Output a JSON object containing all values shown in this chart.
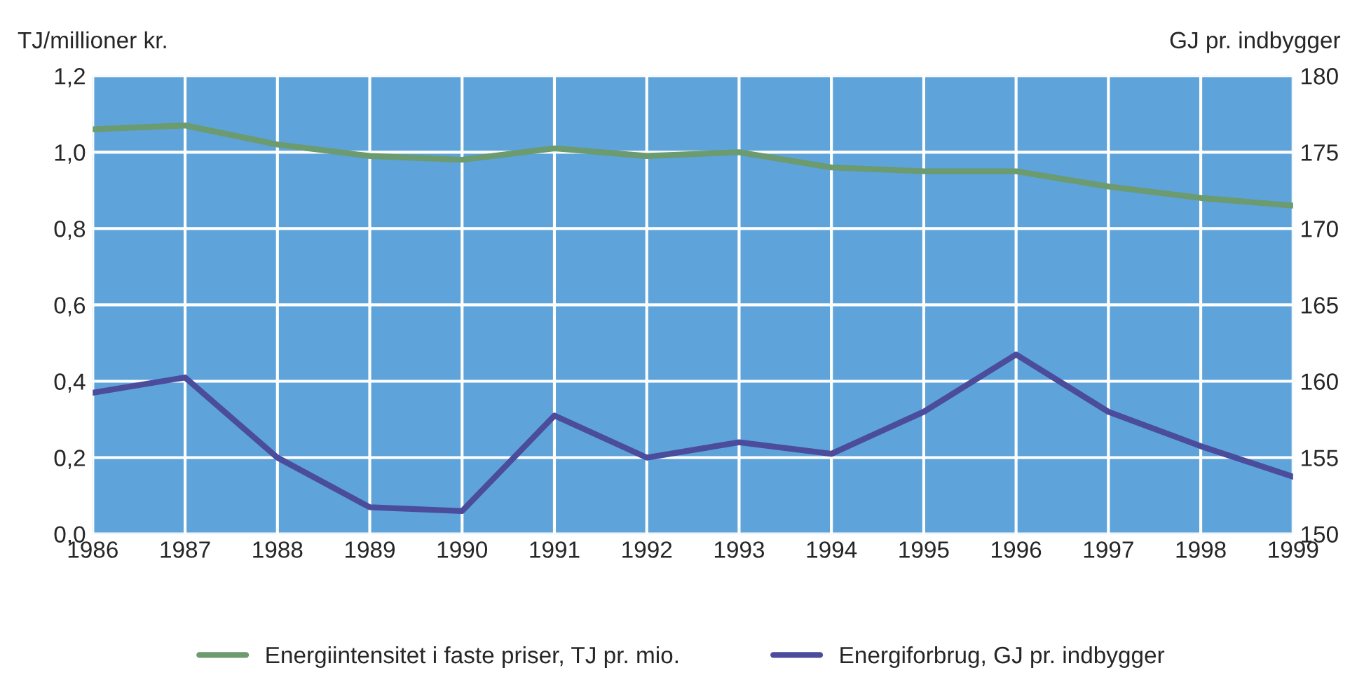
{
  "chart_data": {
    "type": "line",
    "x": [
      1986,
      1987,
      1988,
      1989,
      1990,
      1991,
      1992,
      1993,
      1994,
      1995,
      1996,
      1997,
      1998,
      1999
    ],
    "ylabel": "TJ/millioner kr.",
    "y2label": "GJ pr. indbygger",
    "series": [
      {
        "name": "Energiintensitet i faste priser, TJ pr. mio.",
        "color": "#6b9b6e",
        "values": [
          1.06,
          1.07,
          1.02,
          0.99,
          0.98,
          1.01,
          0.99,
          1.0,
          0.96,
          0.95,
          0.95,
          0.91,
          0.88,
          0.86
        ]
      },
      {
        "name": "Energiforbrug, GJ pr. indbygger",
        "color": "#4b4c9c",
        "axis": "y2",
        "values": [
          159.25,
          160.25,
          155,
          151.75,
          151.5,
          157.75,
          155,
          156,
          155.25,
          158,
          161.75,
          158,
          155.75,
          153.75
        ]
      }
    ],
    "xlim": [
      1986,
      1999
    ],
    "xticks": [
      1986,
      1987,
      1988,
      1989,
      1990,
      1991,
      1992,
      1993,
      1994,
      1995,
      1996,
      1997,
      1998,
      1999
    ],
    "ylim": [
      0,
      1.2
    ],
    "yticks": [
      {
        "value": 0,
        "label": "0,0"
      },
      {
        "value": 0.2,
        "label": "0,2"
      },
      {
        "value": 0.4,
        "label": "0,4"
      },
      {
        "value": 0.6,
        "label": "0,6"
      },
      {
        "value": 0.8,
        "label": "0,8"
      },
      {
        "value": 1.0,
        "label": "1,0"
      },
      {
        "value": 1.2,
        "label": "1,2"
      }
    ],
    "y2lim": [
      150,
      180
    ],
    "y2ticks": [
      150,
      155,
      160,
      165,
      170,
      175,
      180
    ],
    "grid": true,
    "legend": "bottom",
    "marker": "none",
    "line_style": "solid"
  }
}
